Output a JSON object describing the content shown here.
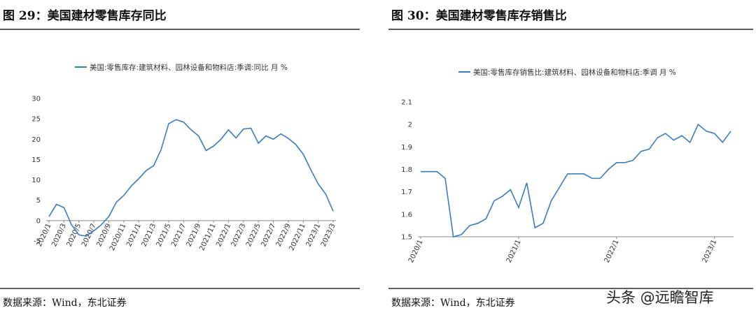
{
  "chart_data": [
    {
      "type": "line",
      "title": "图 29：美国建材零售库存同比",
      "source": "数据来源：Wind，东北证券",
      "categories": [
        "2020/1",
        null,
        "2020/3",
        null,
        "2020/5",
        null,
        "2020/7",
        null,
        "2020/9",
        null,
        "2020/11",
        null,
        "2021/1",
        null,
        "2021/3",
        null,
        "2021/5",
        null,
        "2021/7",
        null,
        "2021/9",
        null,
        "2021/11",
        null,
        "2022/1",
        null,
        "2022/3",
        null,
        "2022/5",
        null,
        "2022/7",
        null,
        "2022/9",
        null,
        "2022/11",
        null,
        "2023/1",
        null,
        "2023/3"
      ],
      "series": [
        {
          "name": "美国:零售库存:建筑材料、园林设备和物料店:季调:同比 月 %",
          "color": "#3a7cc0",
          "values": [
            1,
            4,
            3.2,
            -1,
            -3.5,
            -3.8,
            -2.5,
            -1,
            1,
            4.5,
            6.2,
            8.5,
            10.3,
            12.3,
            13.5,
            17.5,
            23.8,
            24.8,
            24.2,
            22.3,
            20.8,
            17.2,
            18.3,
            20,
            22.3,
            20.3,
            22.5,
            22.7,
            19,
            20.8,
            20,
            21.3,
            20.2,
            18.7,
            16.3,
            12.5,
            9,
            6.5,
            2.3
          ]
        }
      ],
      "ylim": [
        -5,
        30
      ],
      "yticks": [
        -5,
        0,
        5,
        10,
        15,
        20,
        25,
        30
      ]
    },
    {
      "type": "line",
      "title": "图 30：美国建材零售库存销售比",
      "source": "数据来源：Wind，东北证券",
      "categories": [
        "2020/1",
        null,
        null,
        null,
        null,
        null,
        null,
        null,
        null,
        null,
        null,
        null,
        "2021/1",
        null,
        null,
        null,
        null,
        null,
        null,
        null,
        null,
        null,
        null,
        null,
        "2022/1",
        null,
        null,
        null,
        null,
        null,
        null,
        null,
        null,
        null,
        null,
        null,
        "2023/1",
        null,
        null
      ],
      "series": [
        {
          "name": "美国:零售库存销售比:建筑材料、园林设备和物料店:季调 月 %",
          "color": "#3a7cc0",
          "values": [
            1.79,
            1.79,
            1.79,
            1.76,
            1.5,
            1.51,
            1.55,
            1.56,
            1.58,
            1.66,
            1.68,
            1.71,
            1.63,
            1.74,
            1.54,
            1.56,
            1.66,
            1.72,
            1.78,
            1.78,
            1.78,
            1.76,
            1.76,
            1.8,
            1.83,
            1.83,
            1.84,
            1.88,
            1.89,
            1.94,
            1.96,
            1.93,
            1.95,
            1.92,
            2,
            1.97,
            1.96,
            1.92,
            1.97
          ]
        }
      ],
      "ylim": [
        1.5,
        2.1
      ],
      "yticks": [
        1.5,
        1.6,
        1.7,
        1.8,
        1.9,
        2,
        2.1
      ]
    }
  ],
  "watermark": "头条 @远瞻智库"
}
